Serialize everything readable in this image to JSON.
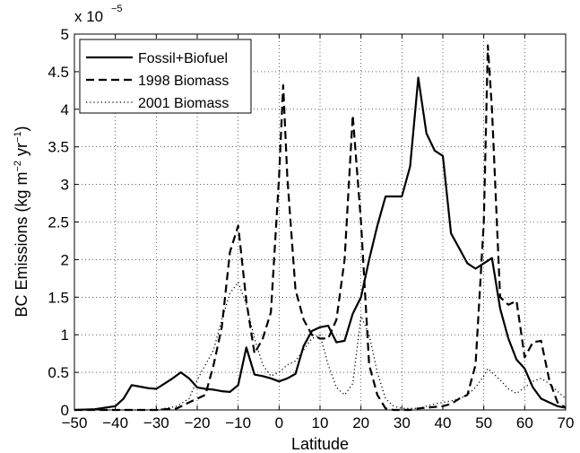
{
  "chart_data": {
    "type": "line",
    "title": "",
    "xlabel": "Latitude",
    "ylabel_main": "BC Emissions (kg m",
    "ylabel_exp1": "−2",
    "ylabel_mid": " yr",
    "ylabel_exp2": "−1",
    "ylabel_end": ")",
    "multiplier_base": "x 10",
    "multiplier_exp": "−5",
    "xlim": [
      -50,
      70
    ],
    "ylim": [
      0,
      5
    ],
    "xticks": [
      -50,
      -40,
      -30,
      -20,
      -10,
      0,
      10,
      20,
      30,
      40,
      50,
      60,
      70
    ],
    "yticks": [
      0,
      0.5,
      1,
      1.5,
      2,
      2.5,
      3,
      3.5,
      4,
      4.5,
      5
    ],
    "xtick_labels": [
      "−50",
      "−40",
      "−30",
      "−20",
      "−10",
      "0",
      "10",
      "20",
      "30",
      "40",
      "50",
      "60",
      "70"
    ],
    "ytick_labels": [
      "0",
      "0.5",
      "1",
      "1.5",
      "2",
      "2.5",
      "3",
      "3.5",
      "4",
      "4.5",
      "5"
    ],
    "grid": true,
    "legend_position": "top-left",
    "series": [
      {
        "name": "Fossil+Biofuel",
        "style": "solid",
        "x": [
          -50,
          -45,
          -40,
          -38,
          -36,
          -34,
          -32,
          -30,
          -28,
          -26,
          -24,
          -22,
          -20,
          -18,
          -16,
          -14,
          -12,
          -10,
          -8,
          -6,
          -4,
          -2,
          0,
          2,
          4,
          6,
          8,
          10,
          12,
          14,
          16,
          18,
          20,
          22,
          24,
          26,
          28,
          30,
          32,
          34,
          36,
          38,
          40,
          42,
          44,
          46,
          48,
          50,
          52,
          54,
          56,
          58,
          60,
          62,
          64,
          66,
          68,
          70
        ],
        "y": [
          0,
          0.01,
          0.05,
          0.15,
          0.33,
          0.31,
          0.29,
          0.28,
          0.35,
          0.42,
          0.5,
          0.42,
          0.3,
          0.28,
          0.27,
          0.25,
          0.24,
          0.33,
          0.83,
          0.47,
          0.45,
          0.42,
          0.38,
          0.42,
          0.48,
          0.85,
          1.05,
          1.1,
          1.12,
          0.9,
          0.92,
          1.28,
          1.5,
          2.0,
          2.45,
          2.84,
          2.84,
          2.84,
          3.24,
          4.42,
          3.68,
          3.45,
          3.38,
          2.35,
          2.15,
          1.95,
          1.88,
          1.95,
          2.02,
          1.35,
          0.95,
          0.67,
          0.55,
          0.3,
          0.15,
          0.1,
          0.05,
          0.03
        ]
      },
      {
        "name": "1998 Biomass",
        "style": "dashed",
        "x": [
          -50,
          -30,
          -25,
          -22,
          -20,
          -18,
          -16,
          -14,
          -12,
          -10,
          -8,
          -6,
          -4,
          -2,
          0,
          1,
          2,
          4,
          6,
          8,
          10,
          12,
          14,
          16,
          18,
          20,
          22,
          24,
          26,
          28,
          30,
          32,
          34,
          36,
          38,
          40,
          42,
          44,
          46,
          48,
          50,
          51,
          52,
          54,
          56,
          58,
          60,
          62,
          64,
          66,
          68,
          70
        ],
        "y": [
          0,
          0,
          0.02,
          0.1,
          0.15,
          0.2,
          0.6,
          1.1,
          2.1,
          2.45,
          1.45,
          0.75,
          0.95,
          1.3,
          3.1,
          4.32,
          3.1,
          1.6,
          1.2,
          1.0,
          0.95,
          0.95,
          1.2,
          2.0,
          3.92,
          2.5,
          0.6,
          0.2,
          0.02,
          0,
          0,
          0,
          0.02,
          0.03,
          0.04,
          0.05,
          0.08,
          0.15,
          0.2,
          0.6,
          2.5,
          4.85,
          4.0,
          1.5,
          1.4,
          1.45,
          0.7,
          0.9,
          0.92,
          0.4,
          0.1,
          0.03
        ]
      },
      {
        "name": "2001 Biomass",
        "style": "dotted",
        "x": [
          -50,
          -30,
          -25,
          -22,
          -20,
          -18,
          -16,
          -14,
          -12,
          -10,
          -8,
          -6,
          -4,
          -2,
          0,
          2,
          4,
          6,
          8,
          10,
          12,
          14,
          16,
          18,
          20,
          22,
          24,
          26,
          28,
          30,
          32,
          34,
          36,
          38,
          40,
          42,
          44,
          46,
          48,
          50,
          51,
          52,
          54,
          56,
          58,
          60,
          62,
          64,
          66,
          68,
          70
        ],
        "y": [
          0,
          0,
          0.05,
          0.15,
          0.4,
          0.6,
          0.8,
          1.2,
          1.55,
          1.7,
          1.4,
          0.95,
          0.6,
          0.45,
          0.5,
          0.6,
          0.65,
          0.8,
          0.95,
          1.0,
          0.6,
          0.3,
          0.2,
          0.35,
          1.25,
          1.0,
          0.5,
          0.15,
          0.05,
          0.02,
          0.02,
          0.02,
          0.05,
          0.08,
          0.1,
          0.12,
          0.15,
          0.2,
          0.3,
          0.45,
          0.55,
          0.5,
          0.4,
          0.28,
          0.22,
          0.3,
          0.38,
          0.42,
          0.35,
          0.25,
          0.15
        ]
      }
    ]
  }
}
